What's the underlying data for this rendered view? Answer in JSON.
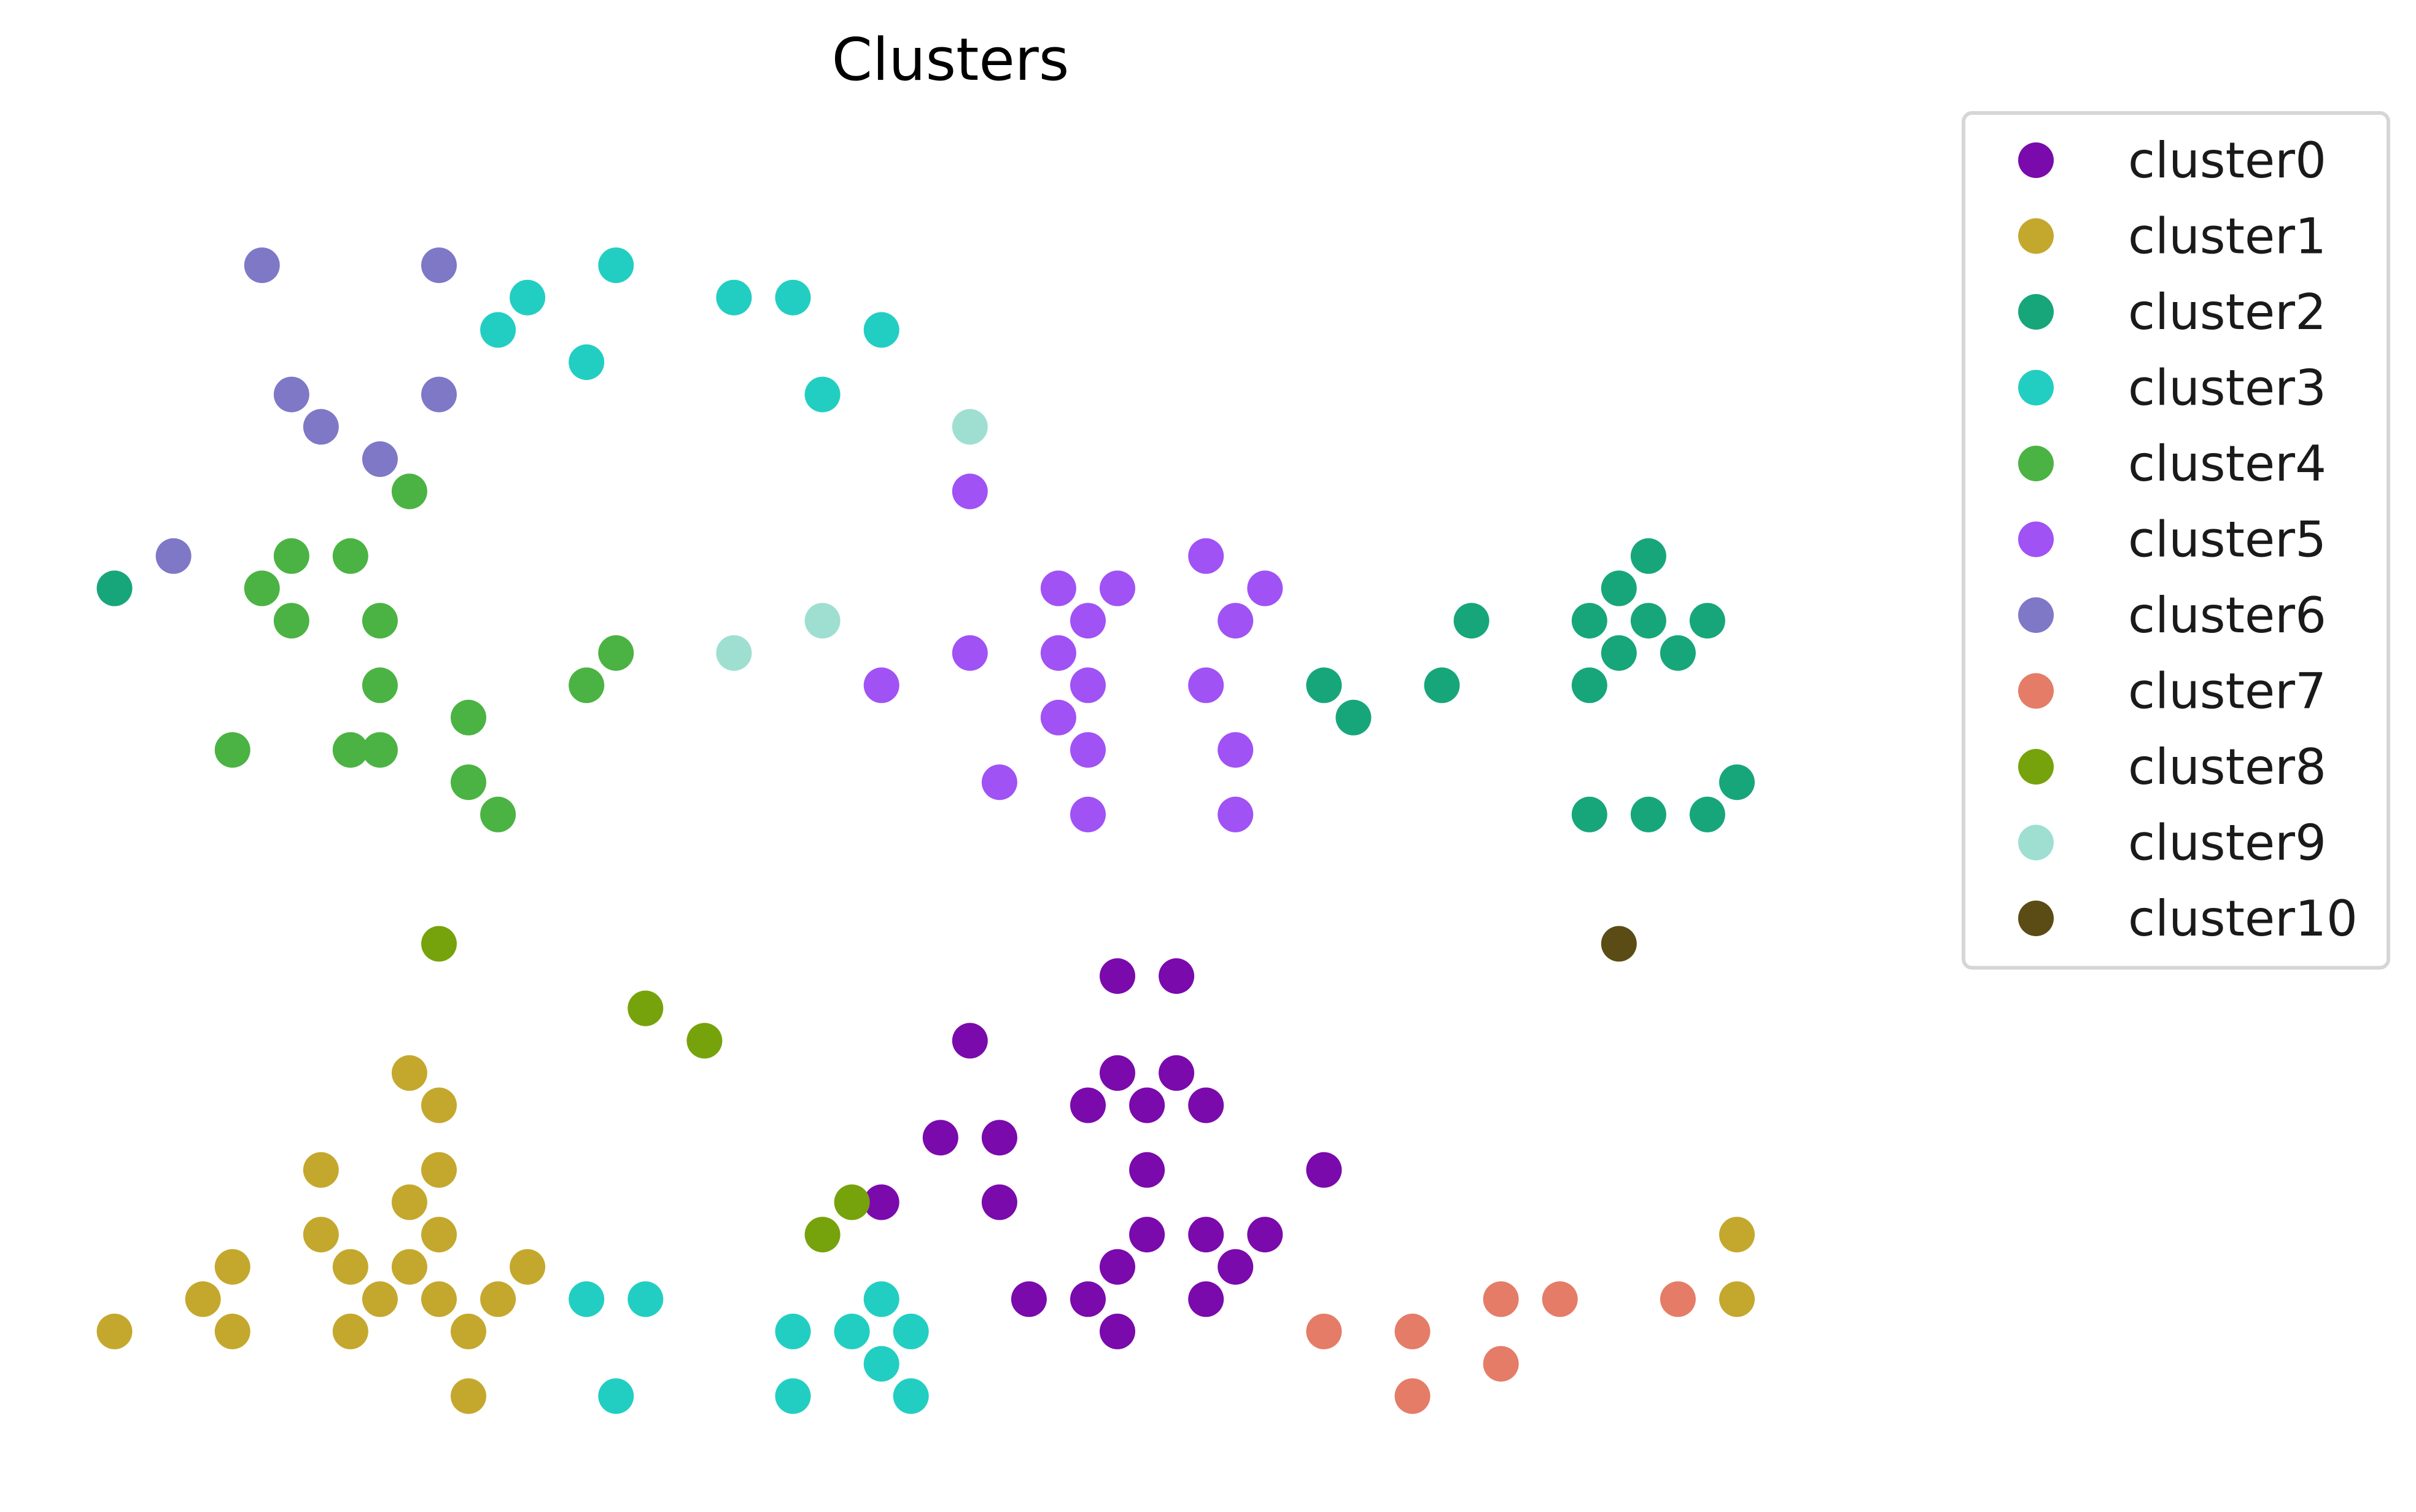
{
  "chart_data": {
    "type": "scatter",
    "title": "Clusters",
    "xlabel": "",
    "ylabel": "",
    "axes_visible": false,
    "grid": false,
    "legend_position": "outside-right-top",
    "xlim": [
      -0.8,
      60.6
    ],
    "ylim": [
      -1.2,
      40.6
    ],
    "series": [
      {
        "name": "cluster0",
        "color": "#7a0aab",
        "points": [
          [
            35,
            14
          ],
          [
            37,
            14
          ],
          [
            30,
            12
          ],
          [
            35,
            11
          ],
          [
            37,
            11
          ],
          [
            34,
            10
          ],
          [
            36,
            10
          ],
          [
            38,
            10
          ],
          [
            29,
            9
          ],
          [
            31,
            9
          ],
          [
            36,
            8
          ],
          [
            42,
            8
          ],
          [
            27,
            7
          ],
          [
            31,
            7
          ],
          [
            36,
            6
          ],
          [
            38,
            6
          ],
          [
            40,
            6
          ],
          [
            35,
            5
          ],
          [
            39,
            5
          ],
          [
            32,
            4
          ],
          [
            34,
            4
          ],
          [
            38,
            4
          ],
          [
            35,
            3
          ]
        ]
      },
      {
        "name": "cluster1",
        "color": "#c4a82e",
        "points": [
          [
            11,
            11
          ],
          [
            12,
            10
          ],
          [
            8,
            8
          ],
          [
            12,
            8
          ],
          [
            11,
            7
          ],
          [
            8,
            6
          ],
          [
            12,
            6
          ],
          [
            56,
            6
          ],
          [
            5,
            5
          ],
          [
            9,
            5
          ],
          [
            11,
            5
          ],
          [
            15,
            5
          ],
          [
            4,
            4
          ],
          [
            10,
            4
          ],
          [
            12,
            4
          ],
          [
            14,
            4
          ],
          [
            56,
            4
          ],
          [
            1,
            3
          ],
          [
            5,
            3
          ],
          [
            9,
            3
          ],
          [
            13,
            3
          ],
          [
            13,
            1
          ]
        ]
      },
      {
        "name": "cluster2",
        "color": "#17a67a",
        "points": [
          [
            1,
            26
          ],
          [
            53,
            27
          ],
          [
            52,
            26
          ],
          [
            47,
            25
          ],
          [
            51,
            25
          ],
          [
            53,
            25
          ],
          [
            55,
            25
          ],
          [
            52,
            24
          ],
          [
            54,
            24
          ],
          [
            42,
            23
          ],
          [
            46,
            23
          ],
          [
            51,
            23
          ],
          [
            43,
            22
          ],
          [
            56,
            20
          ],
          [
            51,
            19
          ],
          [
            53,
            19
          ],
          [
            55,
            19
          ]
        ]
      },
      {
        "name": "cluster3",
        "color": "#22cec2",
        "points": [
          [
            18,
            36
          ],
          [
            15,
            35
          ],
          [
            22,
            35
          ],
          [
            24,
            35
          ],
          [
            14,
            34
          ],
          [
            27,
            34
          ],
          [
            17,
            33
          ],
          [
            25,
            32
          ],
          [
            17,
            4
          ],
          [
            19,
            4
          ],
          [
            27,
            4
          ],
          [
            24,
            3
          ],
          [
            26,
            3
          ],
          [
            28,
            3
          ],
          [
            27,
            2
          ],
          [
            18,
            1
          ],
          [
            24,
            1
          ],
          [
            28,
            1
          ]
        ]
      },
      {
        "name": "cluster4",
        "color": "#4bb343",
        "points": [
          [
            11,
            29
          ],
          [
            7,
            27
          ],
          [
            9,
            27
          ],
          [
            6,
            26
          ],
          [
            7,
            25
          ],
          [
            10,
            25
          ],
          [
            18,
            24
          ],
          [
            10,
            23
          ],
          [
            17,
            23
          ],
          [
            13,
            22
          ],
          [
            5,
            21
          ],
          [
            9,
            21
          ],
          [
            10,
            21
          ],
          [
            13,
            20
          ],
          [
            14,
            19
          ]
        ]
      },
      {
        "name": "cluster5",
        "color": "#a052f5",
        "points": [
          [
            30,
            29
          ],
          [
            38,
            27
          ],
          [
            33,
            26
          ],
          [
            35,
            26
          ],
          [
            40,
            26
          ],
          [
            34,
            25
          ],
          [
            39,
            25
          ],
          [
            30,
            24
          ],
          [
            33,
            24
          ],
          [
            27,
            23
          ],
          [
            34,
            23
          ],
          [
            38,
            23
          ],
          [
            33,
            22
          ],
          [
            34,
            21
          ],
          [
            39,
            21
          ],
          [
            31,
            20
          ],
          [
            34,
            19
          ],
          [
            39,
            19
          ]
        ]
      },
      {
        "name": "cluster6",
        "color": "#7f78c7",
        "points": [
          [
            6,
            36
          ],
          [
            12,
            36
          ],
          [
            7,
            32
          ],
          [
            12,
            32
          ],
          [
            8,
            31
          ],
          [
            10,
            30
          ],
          [
            3,
            27
          ]
        ]
      },
      {
        "name": "cluster7",
        "color": "#e57c67",
        "points": [
          [
            48,
            4
          ],
          [
            50,
            4
          ],
          [
            54,
            4
          ],
          [
            42,
            3
          ],
          [
            45,
            3
          ],
          [
            48,
            2
          ],
          [
            45,
            1
          ]
        ]
      },
      {
        "name": "cluster8",
        "color": "#76a30c",
        "points": [
          [
            12,
            15
          ],
          [
            19,
            13
          ],
          [
            21,
            12
          ],
          [
            26,
            7
          ],
          [
            25,
            6
          ]
        ]
      },
      {
        "name": "cluster9",
        "color": "#9fdfd2",
        "points": [
          [
            30,
            31
          ],
          [
            25,
            25
          ],
          [
            22,
            24
          ]
        ]
      },
      {
        "name": "cluster10",
        "color": "#5b4c16",
        "points": [
          [
            52,
            15
          ]
        ]
      }
    ]
  }
}
